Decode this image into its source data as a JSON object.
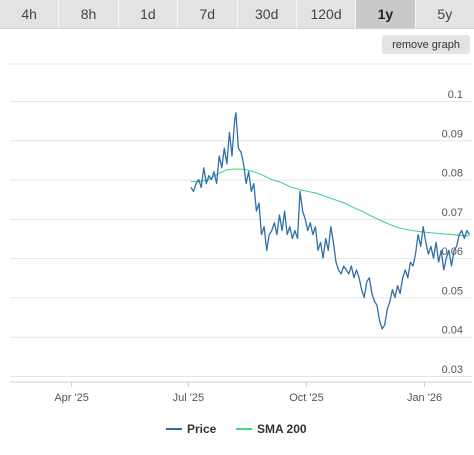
{
  "range_tabs": [
    {
      "label": "4h",
      "active": false
    },
    {
      "label": "8h",
      "active": false
    },
    {
      "label": "1d",
      "active": false
    },
    {
      "label": "7d",
      "active": false
    },
    {
      "label": "30d",
      "active": false
    },
    {
      "label": "120d",
      "active": false
    },
    {
      "label": "1y",
      "active": true
    },
    {
      "label": "5y",
      "active": false
    }
  ],
  "remove_graph_label": "remove graph",
  "colors": {
    "price": "#2f6fa8",
    "sma": "#4cd28a",
    "grid": "#e6e6e6"
  },
  "chart_data": {
    "type": "line",
    "title": "",
    "xlabel": "",
    "ylabel": "",
    "x_ticks": [
      "Apr '25",
      "Jul '25",
      "Oct '25",
      "Jan '26"
    ],
    "y_ticks": [
      "0.1",
      "0.09",
      "0.08",
      "0.07",
      "0.06",
      "0.05",
      "0.04",
      "0.03"
    ],
    "ylim": [
      0.03,
      0.1
    ],
    "xlim": [
      "2025-02-12",
      "2026-02-07"
    ],
    "grid": true,
    "legend_position": "bottom",
    "series": [
      {
        "name": "Price",
        "points": [
          [
            "2025-07-03",
            0.078
          ],
          [
            "2025-07-05",
            0.077
          ],
          [
            "2025-07-07",
            0.079
          ],
          [
            "2025-07-09",
            0.08
          ],
          [
            "2025-07-11",
            0.078
          ],
          [
            "2025-07-13",
            0.083
          ],
          [
            "2025-07-15",
            0.079
          ],
          [
            "2025-07-17",
            0.081
          ],
          [
            "2025-07-19",
            0.08
          ],
          [
            "2025-07-21",
            0.082
          ],
          [
            "2025-07-23",
            0.079
          ],
          [
            "2025-07-25",
            0.086
          ],
          [
            "2025-07-27",
            0.083
          ],
          [
            "2025-07-29",
            0.088
          ],
          [
            "2025-07-31",
            0.084
          ],
          [
            "2025-08-02",
            0.092
          ],
          [
            "2025-08-04",
            0.086
          ],
          [
            "2025-08-06",
            0.095
          ],
          [
            "2025-08-07",
            0.097
          ],
          [
            "2025-08-09",
            0.088
          ],
          [
            "2025-08-11",
            0.087
          ],
          [
            "2025-08-13",
            0.084
          ],
          [
            "2025-08-15",
            0.079
          ],
          [
            "2025-08-17",
            0.082
          ],
          [
            "2025-08-19",
            0.077
          ],
          [
            "2025-08-21",
            0.079
          ],
          [
            "2025-08-23",
            0.072
          ],
          [
            "2025-08-25",
            0.074
          ],
          [
            "2025-08-27",
            0.066
          ],
          [
            "2025-08-29",
            0.068
          ],
          [
            "2025-08-31",
            0.062
          ],
          [
            "2025-09-02",
            0.066
          ],
          [
            "2025-09-04",
            0.067
          ],
          [
            "2025-09-06",
            0.069
          ],
          [
            "2025-09-08",
            0.066
          ],
          [
            "2025-09-10",
            0.071
          ],
          [
            "2025-09-12",
            0.067
          ],
          [
            "2025-09-14",
            0.072
          ],
          [
            "2025-09-16",
            0.066
          ],
          [
            "2025-09-18",
            0.068
          ],
          [
            "2025-09-20",
            0.065
          ],
          [
            "2025-09-22",
            0.067
          ],
          [
            "2025-09-24",
            0.065
          ],
          [
            "2025-09-26",
            0.077
          ],
          [
            "2025-09-28",
            0.072
          ],
          [
            "2025-09-30",
            0.07
          ],
          [
            "2025-10-02",
            0.067
          ],
          [
            "2025-10-04",
            0.069
          ],
          [
            "2025-10-06",
            0.066
          ],
          [
            "2025-10-08",
            0.068
          ],
          [
            "2025-10-10",
            0.062
          ],
          [
            "2025-10-12",
            0.064
          ],
          [
            "2025-10-14",
            0.06
          ],
          [
            "2025-10-16",
            0.065
          ],
          [
            "2025-10-18",
            0.062
          ],
          [
            "2025-10-20",
            0.068
          ],
          [
            "2025-10-22",
            0.064
          ],
          [
            "2025-10-24",
            0.059
          ],
          [
            "2025-10-26",
            0.057
          ],
          [
            "2025-10-28",
            0.056
          ],
          [
            "2025-10-30",
            0.058
          ],
          [
            "2025-11-01",
            0.057
          ],
          [
            "2025-11-03",
            0.056
          ],
          [
            "2025-11-05",
            0.058
          ],
          [
            "2025-11-07",
            0.055
          ],
          [
            "2025-11-09",
            0.057
          ],
          [
            "2025-11-11",
            0.055
          ],
          [
            "2025-11-13",
            0.052
          ],
          [
            "2025-11-15",
            0.05
          ],
          [
            "2025-11-17",
            0.054
          ],
          [
            "2025-11-19",
            0.055
          ],
          [
            "2025-11-21",
            0.051
          ],
          [
            "2025-11-23",
            0.049
          ],
          [
            "2025-11-25",
            0.048
          ],
          [
            "2025-11-27",
            0.044
          ],
          [
            "2025-11-29",
            0.042
          ],
          [
            "2025-12-01",
            0.043
          ],
          [
            "2025-12-03",
            0.047
          ],
          [
            "2025-12-05",
            0.049
          ],
          [
            "2025-12-07",
            0.052
          ],
          [
            "2025-12-09",
            0.05
          ],
          [
            "2025-12-11",
            0.053
          ],
          [
            "2025-12-13",
            0.051
          ],
          [
            "2025-12-15",
            0.055
          ],
          [
            "2025-12-17",
            0.057
          ],
          [
            "2025-12-19",
            0.055
          ],
          [
            "2025-12-21",
            0.059
          ],
          [
            "2025-12-23",
            0.058
          ],
          [
            "2025-12-25",
            0.061
          ],
          [
            "2025-12-27",
            0.066
          ],
          [
            "2025-12-29",
            0.063
          ],
          [
            "2025-12-31",
            0.068
          ],
          [
            "2026-01-02",
            0.064
          ],
          [
            "2026-01-04",
            0.061
          ],
          [
            "2026-01-06",
            0.063
          ],
          [
            "2026-01-08",
            0.06
          ],
          [
            "2026-01-10",
            0.064
          ],
          [
            "2026-01-12",
            0.059
          ],
          [
            "2026-01-14",
            0.062
          ],
          [
            "2026-01-16",
            0.057
          ],
          [
            "2026-01-18",
            0.06
          ],
          [
            "2026-01-20",
            0.062
          ],
          [
            "2026-01-22",
            0.058
          ],
          [
            "2026-01-24",
            0.062
          ],
          [
            "2026-01-26",
            0.063
          ],
          [
            "2026-01-28",
            0.066
          ],
          [
            "2026-01-30",
            0.067
          ],
          [
            "2026-02-01",
            0.065
          ],
          [
            "2026-02-03",
            0.067
          ],
          [
            "2026-02-05",
            0.066
          ]
        ]
      },
      {
        "name": "SMA 200",
        "points": [
          [
            "2025-07-03",
            0.0795
          ],
          [
            "2025-07-10",
            0.0795
          ],
          [
            "2025-07-17",
            0.08
          ],
          [
            "2025-07-24",
            0.0815
          ],
          [
            "2025-07-31",
            0.0825
          ],
          [
            "2025-08-07",
            0.0827
          ],
          [
            "2025-08-14",
            0.0826
          ],
          [
            "2025-08-21",
            0.082
          ],
          [
            "2025-08-28",
            0.0811
          ],
          [
            "2025-09-04",
            0.08
          ],
          [
            "2025-09-11",
            0.0793
          ],
          [
            "2025-09-18",
            0.0782
          ],
          [
            "2025-09-25",
            0.0775
          ],
          [
            "2025-10-02",
            0.077
          ],
          [
            "2025-10-09",
            0.0765
          ],
          [
            "2025-10-16",
            0.0757
          ],
          [
            "2025-10-23",
            0.0749
          ],
          [
            "2025-10-30",
            0.0741
          ],
          [
            "2025-11-06",
            0.073
          ],
          [
            "2025-11-13",
            0.072
          ],
          [
            "2025-11-20",
            0.0708
          ],
          [
            "2025-11-27",
            0.0697
          ],
          [
            "2025-12-04",
            0.0687
          ],
          [
            "2025-12-11",
            0.0678
          ],
          [
            "2025-12-18",
            0.0673
          ],
          [
            "2025-12-25",
            0.0669
          ],
          [
            "2026-01-01",
            0.0666
          ],
          [
            "2026-01-08",
            0.0664
          ],
          [
            "2026-01-15",
            0.0662
          ],
          [
            "2026-01-22",
            0.066
          ],
          [
            "2026-01-29",
            0.0658
          ],
          [
            "2026-02-05",
            0.0657
          ]
        ]
      }
    ]
  }
}
